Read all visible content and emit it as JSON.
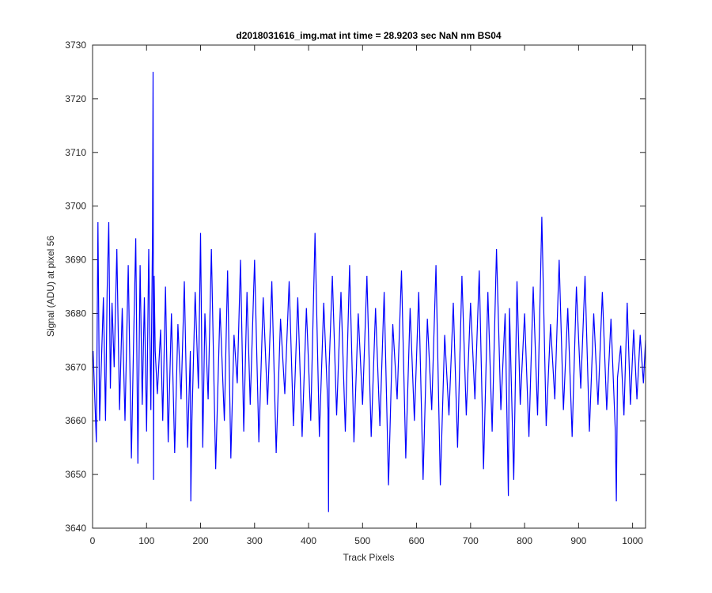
{
  "chart_data": {
    "type": "line",
    "title": "d2018031616_img.mat int time = 28.9203 sec  NaN nm BS04",
    "xlabel": "Track Pixels",
    "ylabel": "Signal (ADU) at pixel 56",
    "xlim": [
      0,
      1024
    ],
    "ylim": [
      3640,
      3730
    ],
    "xticks": [
      "0",
      "100",
      "200",
      "300",
      "400",
      "500",
      "600",
      "700",
      "800",
      "900",
      "1000"
    ],
    "yticks": [
      "3640",
      "3650",
      "3660",
      "3670",
      "3680",
      "3690",
      "3700",
      "3710",
      "3720",
      "3730"
    ],
    "grid": false,
    "line_color": "#0000ff",
    "series": [
      {
        "x": [
          1,
          7,
          10,
          13,
          20,
          24,
          27,
          30,
          33,
          36,
          40,
          45,
          50,
          55,
          60,
          66,
          72,
          76,
          80,
          84,
          88,
          92,
          96,
          100,
          104,
          108,
          111,
          112,
          113,
          114,
          116,
          120,
          126,
          130,
          135,
          140,
          146,
          152,
          158,
          164,
          170,
          176,
          181,
          182,
          184,
          190,
          196,
          200,
          204,
          208,
          214,
          220,
          228,
          236,
          244,
          250,
          256,
          262,
          268,
          274,
          280,
          286,
          292,
          300,
          308,
          316,
          324,
          332,
          340,
          348,
          356,
          364,
          372,
          380,
          388,
          396,
          404,
          412,
          420,
          428,
          436,
          437,
          438,
          444,
          452,
          460,
          468,
          476,
          484,
          492,
          500,
          508,
          516,
          524,
          532,
          540,
          548,
          556,
          564,
          572,
          580,
          588,
          596,
          604,
          612,
          620,
          628,
          636,
          644,
          652,
          660,
          668,
          676,
          684,
          692,
          700,
          708,
          716,
          724,
          732,
          740,
          748,
          756,
          764,
          770,
          772,
          780,
          786,
          792,
          800,
          808,
          816,
          824,
          832,
          840,
          848,
          856,
          864,
          872,
          880,
          888,
          896,
          904,
          912,
          920,
          928,
          936,
          944,
          952,
          960,
          968,
          970,
          972,
          978,
          984,
          990,
          996,
          1002,
          1008,
          1014,
          1020,
          1024
        ],
        "values": [
          3673,
          3656,
          3697,
          3660,
          3683,
          3660,
          3684,
          3697,
          3666,
          3682,
          3670,
          3692,
          3662,
          3681,
          3660,
          3689,
          3653,
          3675,
          3694,
          3652,
          3689,
          3663,
          3683,
          3658,
          3692,
          3662,
          3695,
          3725,
          3649,
          3687,
          3673,
          3665,
          3677,
          3660,
          3685,
          3656,
          3680,
          3654,
          3678,
          3664,
          3686,
          3655,
          3673,
          3645,
          3660,
          3684,
          3666,
          3695,
          3655,
          3680,
          3664,
          3692,
          3651,
          3681,
          3660,
          3688,
          3653,
          3676,
          3667,
          3690,
          3658,
          3684,
          3663,
          3690,
          3656,
          3683,
          3663,
          3686,
          3654,
          3679,
          3665,
          3686,
          3659,
          3683,
          3657,
          3681,
          3660,
          3695,
          3657,
          3682,
          3662,
          3643,
          3670,
          3687,
          3661,
          3684,
          3658,
          3689,
          3656,
          3680,
          3663,
          3687,
          3657,
          3681,
          3659,
          3684,
          3648,
          3678,
          3664,
          3688,
          3653,
          3681,
          3660,
          3684,
          3649,
          3679,
          3662,
          3689,
          3648,
          3676,
          3661,
          3682,
          3655,
          3687,
          3661,
          3682,
          3664,
          3688,
          3651,
          3684,
          3658,
          3692,
          3662,
          3680,
          3646,
          3681,
          3649,
          3686,
          3663,
          3680,
          3657,
          3685,
          3661,
          3698,
          3659,
          3678,
          3664,
          3690,
          3662,
          3681,
          3657,
          3685,
          3666,
          3687,
          3658,
          3680,
          3663,
          3684,
          3662,
          3679,
          3658,
          3645,
          3668,
          3674,
          3661,
          3682,
          3663,
          3677,
          3664,
          3676,
          3667,
          3675
        ]
      }
    ]
  }
}
